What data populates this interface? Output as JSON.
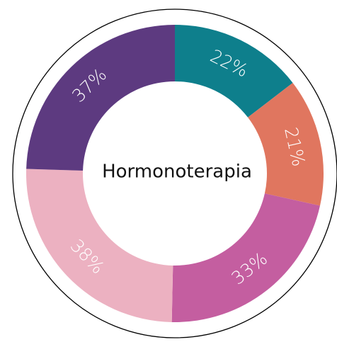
{
  "chart_data": {
    "type": "donut",
    "center_text": "Hormonoterapia",
    "values": [
      22,
      21,
      33,
      38,
      37
    ],
    "value_labels": [
      "22%",
      "21%",
      "33%",
      "38%",
      "37%"
    ],
    "colors": [
      "#0e7f8c",
      "#e0765f",
      "#c45ea0",
      "#ecb1c1",
      "#5d3a80"
    ]
  }
}
